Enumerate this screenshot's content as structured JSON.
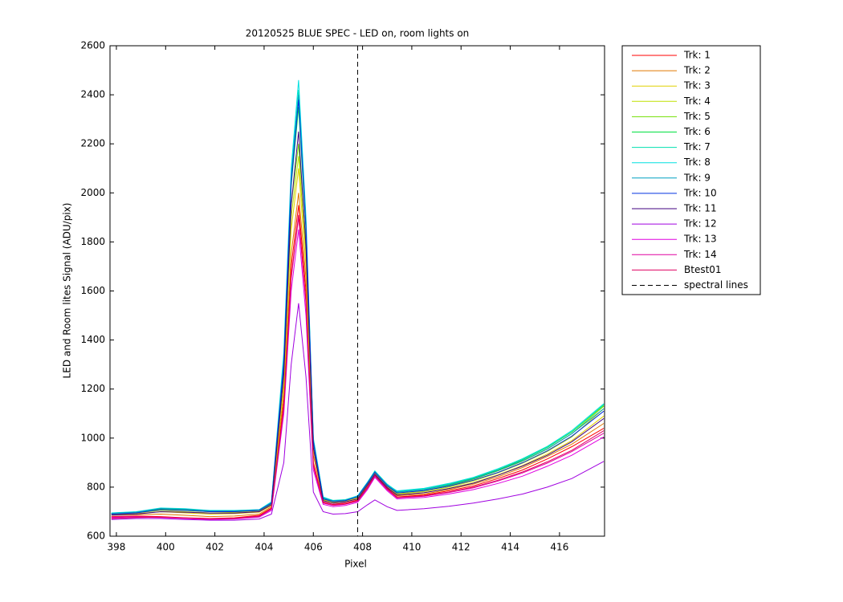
{
  "chart_data": {
    "type": "line",
    "title": "20120525 BLUE SPEC - LED on, room lights on",
    "x_label": "Pixel",
    "y_label": "LED and Room lites Signal (ADU/pix)",
    "x": [
      397.8,
      398.8,
      399.8,
      400.8,
      401.8,
      402.8,
      403.8,
      404.3,
      404.8,
      405.1,
      405.4,
      405.7,
      406.0,
      406.4,
      406.8,
      407.3,
      407.8,
      408.2,
      408.5,
      409.0,
      409.4,
      410.5,
      411.5,
      412.5,
      413.5,
      414.5,
      415.5,
      416.5,
      417.8
    ],
    "series": [
      {
        "name": "Trk: 1",
        "color": "#ff0000",
        "values": [
          680,
          682,
          680,
          675,
          672,
          675,
          685,
          715,
          1150,
          1700,
          1950,
          1600,
          900,
          740,
          730,
          735,
          748,
          800,
          850,
          795,
          760,
          768,
          785,
          805,
          835,
          870,
          915,
          965,
          1040
        ]
      },
      {
        "name": "Trk: 2",
        "color": "#e07800",
        "values": [
          685,
          688,
          690,
          685,
          680,
          682,
          690,
          720,
          1180,
          1750,
          2000,
          1650,
          930,
          745,
          735,
          740,
          752,
          805,
          855,
          800,
          765,
          772,
          790,
          812,
          842,
          880,
          925,
          975,
          1060
        ]
      },
      {
        "name": "Trk: 3",
        "color": "#e0d000",
        "values": [
          688,
          692,
          700,
          695,
          690,
          692,
          698,
          725,
          1220,
          1850,
          2100,
          1700,
          950,
          748,
          738,
          742,
          755,
          810,
          858,
          803,
          770,
          778,
          795,
          818,
          850,
          888,
          935,
          990,
          1090
        ]
      },
      {
        "name": "Trk: 4",
        "color": "#c0e000",
        "values": [
          690,
          695,
          705,
          700,
          695,
          697,
          703,
          728,
          1250,
          1900,
          2150,
          1750,
          960,
          750,
          740,
          745,
          758,
          812,
          860,
          806,
          773,
          782,
          800,
          825,
          858,
          898,
          945,
          1005,
          1120
        ]
      },
      {
        "name": "Trk: 5",
        "color": "#70e000",
        "values": [
          692,
          697,
          710,
          705,
          700,
          700,
          705,
          732,
          1280,
          1950,
          2200,
          1800,
          980,
          752,
          742,
          747,
          760,
          815,
          862,
          808,
          776,
          786,
          806,
          832,
          866,
          906,
          955,
          1018,
          1130
        ]
      },
      {
        "name": "Trk: 6",
        "color": "#00e040",
        "values": [
          693,
          698,
          712,
          708,
          703,
          703,
          707,
          736,
          1310,
          2030,
          2350,
          1850,
          990,
          755,
          744,
          748,
          762,
          818,
          864,
          810,
          780,
          790,
          810,
          836,
          870,
          912,
          962,
          1025,
          1135
        ]
      },
      {
        "name": "Trk: 7",
        "color": "#00e0b0",
        "values": [
          694,
          699,
          714,
          710,
          704,
          704,
          708,
          738,
          1330,
          2070,
          2420,
          1880,
          995,
          758,
          746,
          749,
          764,
          820,
          866,
          812,
          783,
          793,
          813,
          839,
          874,
          916,
          966,
          1030,
          1140
        ]
      },
      {
        "name": "Trk: 8",
        "color": "#00e0e0",
        "values": [
          695,
          700,
          715,
          712,
          705,
          705,
          708,
          740,
          1350,
          2100,
          2460,
          1900,
          1000,
          760,
          745,
          748,
          765,
          820,
          865,
          810,
          785,
          795,
          815,
          840,
          875,
          915,
          965,
          1030,
          1140
        ]
      },
      {
        "name": "Trk: 9",
        "color": "#00a0c0",
        "values": [
          693,
          698,
          713,
          710,
          703,
          703,
          707,
          736,
          1320,
          2060,
          2400,
          1870,
          990,
          756,
          744,
          747,
          762,
          818,
          863,
          808,
          780,
          790,
          809,
          834,
          868,
          908,
          956,
          1018,
          1120
        ]
      },
      {
        "name": "Trk: 10",
        "color": "#0030e0",
        "values": [
          690,
          695,
          708,
          705,
          700,
          700,
          705,
          734,
          1300,
          2040,
          2380,
          1860,
          985,
          752,
          741,
          745,
          760,
          815,
          860,
          805,
          776,
          786,
          804,
          828,
          860,
          900,
          948,
          1008,
          1110
        ]
      },
      {
        "name": "Trk: 11",
        "color": "#400080",
        "values": [
          686,
          690,
          700,
          698,
          694,
          694,
          700,
          728,
          1260,
          1950,
          2250,
          1780,
          960,
          745,
          735,
          740,
          752,
          808,
          852,
          798,
          768,
          777,
          794,
          816,
          848,
          886,
          930,
          985,
          1080
        ]
      },
      {
        "name": "Trk: 12",
        "color": "#a000e0",
        "values": [
          668,
          672,
          672,
          668,
          665,
          665,
          670,
          690,
          900,
          1300,
          1550,
          1250,
          780,
          700,
          690,
          692,
          700,
          728,
          748,
          720,
          705,
          712,
          722,
          735,
          752,
          772,
          800,
          835,
          905
        ]
      },
      {
        "name": "Trk: 13",
        "color": "#e000e0",
        "values": [
          675,
          678,
          676,
          672,
          668,
          670,
          678,
          705,
          1100,
          1600,
          1850,
          1500,
          870,
          730,
          720,
          725,
          738,
          790,
          840,
          785,
          752,
          758,
          772,
          790,
          815,
          845,
          885,
          930,
          1005
        ]
      },
      {
        "name": "Trk: 14",
        "color": "#e000a0",
        "values": [
          678,
          680,
          678,
          674,
          670,
          672,
          680,
          710,
          1120,
          1650,
          1900,
          1550,
          885,
          735,
          725,
          730,
          742,
          795,
          845,
          790,
          756,
          763,
          778,
          797,
          825,
          858,
          898,
          945,
          1020
        ]
      },
      {
        "name": "Btest01",
        "color": "#e00060",
        "values": [
          672,
          676,
          678,
          674,
          671,
          673,
          682,
          712,
          1130,
          1660,
          1910,
          1560,
          890,
          738,
          728,
          732,
          745,
          798,
          847,
          792,
          758,
          765,
          780,
          800,
          828,
          862,
          903,
          950,
          1030
        ]
      }
    ],
    "vlines": [
      {
        "name": "spectral lines",
        "x": 407.8,
        "color": "#000000"
      }
    ],
    "xlim": [
      397.74,
      417.83
    ],
    "xticks": [
      398,
      400,
      402,
      404,
      406,
      408,
      410,
      412,
      414,
      416
    ],
    "ylim": [
      600,
      2600
    ],
    "yticks": [
      600,
      800,
      1000,
      1200,
      1400,
      1600,
      1800,
      2000,
      2200,
      2400,
      2600
    ],
    "legend": "outside-right"
  }
}
